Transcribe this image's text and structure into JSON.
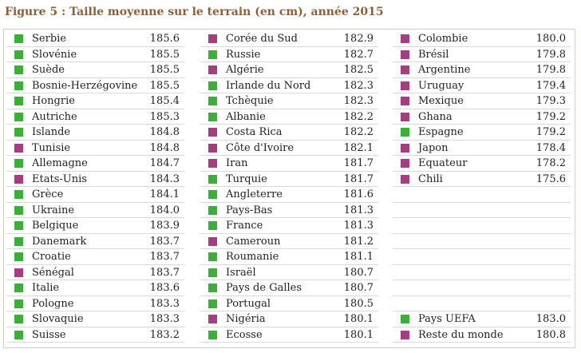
{
  "title": "Figure 5 : Taille moyenne sur le terrain (en cm), année 2015",
  "colors": {
    "uefa": "#3eae3a",
    "other": "#a53e7f"
  },
  "chart_data": {
    "type": "table",
    "title": "Figure 5 : Taille moyenne sur le terrain (en cm), année 2015",
    "columns": [
      [
        {
          "name": "Serbie",
          "value": "185.6",
          "group": "uefa"
        },
        {
          "name": "Slovénie",
          "value": "185.5",
          "group": "uefa"
        },
        {
          "name": "Suède",
          "value": "185.5",
          "group": "uefa"
        },
        {
          "name": "Bosnie-Herzégovine",
          "value": "185.5",
          "group": "uefa"
        },
        {
          "name": "Hongrie",
          "value": "185.4",
          "group": "uefa"
        },
        {
          "name": "Autriche",
          "value": "185.3",
          "group": "uefa"
        },
        {
          "name": "Islande",
          "value": "184.8",
          "group": "uefa"
        },
        {
          "name": "Tunisie",
          "value": "184.8",
          "group": "other"
        },
        {
          "name": "Allemagne",
          "value": "184.7",
          "group": "uefa"
        },
        {
          "name": "Etats-Unis",
          "value": "184.3",
          "group": "other"
        },
        {
          "name": "Grèce",
          "value": "184.1",
          "group": "uefa"
        },
        {
          "name": "Ukraine",
          "value": "184.0",
          "group": "uefa"
        },
        {
          "name": "Belgique",
          "value": "183.9",
          "group": "uefa"
        },
        {
          "name": "Danemark",
          "value": "183.7",
          "group": "uefa"
        },
        {
          "name": "Croatie",
          "value": "183.7",
          "group": "uefa"
        },
        {
          "name": "Sénégal",
          "value": "183.7",
          "group": "other"
        },
        {
          "name": "Italie",
          "value": "183.6",
          "group": "uefa"
        },
        {
          "name": "Pologne",
          "value": "183.3",
          "group": "uefa"
        },
        {
          "name": "Slovaquie",
          "value": "183.3",
          "group": "uefa"
        },
        {
          "name": "Suisse",
          "value": "183.2",
          "group": "uefa"
        }
      ],
      [
        {
          "name": "Corée du Sud",
          "value": "182.9",
          "group": "other"
        },
        {
          "name": "Russie",
          "value": "182.7",
          "group": "uefa"
        },
        {
          "name": "Algérie",
          "value": "182.5",
          "group": "other"
        },
        {
          "name": "Irlande du Nord",
          "value": "182.3",
          "group": "uefa"
        },
        {
          "name": "Tchèquie",
          "value": "182.3",
          "group": "uefa"
        },
        {
          "name": "Albanie",
          "value": "182.2",
          "group": "uefa"
        },
        {
          "name": "Costa Rica",
          "value": "182.2",
          "group": "other"
        },
        {
          "name": "Côte d'Ivoire",
          "value": "182.1",
          "group": "other"
        },
        {
          "name": "Iran",
          "value": "181.7",
          "group": "other"
        },
        {
          "name": "Turquie",
          "value": "181.7",
          "group": "uefa"
        },
        {
          "name": "Angleterre",
          "value": "181.6",
          "group": "uefa"
        },
        {
          "name": "Pays-Bas",
          "value": "181.3",
          "group": "uefa"
        },
        {
          "name": "France",
          "value": "181.3",
          "group": "uefa"
        },
        {
          "name": "Cameroun",
          "value": "181.2",
          "group": "other"
        },
        {
          "name": "Roumanie",
          "value": "181.1",
          "group": "uefa"
        },
        {
          "name": "Israël",
          "value": "180.7",
          "group": "uefa"
        },
        {
          "name": "Pays de Galles",
          "value": "180.7",
          "group": "uefa"
        },
        {
          "name": "Portugal",
          "value": "180.5",
          "group": "uefa"
        },
        {
          "name": "Nigéria",
          "value": "180.1",
          "group": "other"
        },
        {
          "name": "Ecosse",
          "value": "180.1",
          "group": "uefa"
        }
      ],
      [
        {
          "name": "Colombie",
          "value": "180.0",
          "group": "other"
        },
        {
          "name": "Brésil",
          "value": "179.8",
          "group": "other"
        },
        {
          "name": "Argentine",
          "value": "179.8",
          "group": "other"
        },
        {
          "name": "Uruguay",
          "value": "179.4",
          "group": "other"
        },
        {
          "name": "Mexique",
          "value": "179.3",
          "group": "other"
        },
        {
          "name": "Ghana",
          "value": "179.2",
          "group": "other"
        },
        {
          "name": "Espagne",
          "value": "179.2",
          "group": "uefa"
        },
        {
          "name": "Japon",
          "value": "178.4",
          "group": "other"
        },
        {
          "name": "Equateur",
          "value": "178.2",
          "group": "other"
        },
        {
          "name": "Chili",
          "value": "175.6",
          "group": "other"
        },
        null,
        null,
        null,
        null,
        null,
        null,
        null,
        null,
        {
          "name": "Pays UEFA",
          "value": "183.0",
          "group": "uefa"
        },
        {
          "name": "Reste du monde",
          "value": "180.8",
          "group": "other"
        }
      ]
    ]
  }
}
